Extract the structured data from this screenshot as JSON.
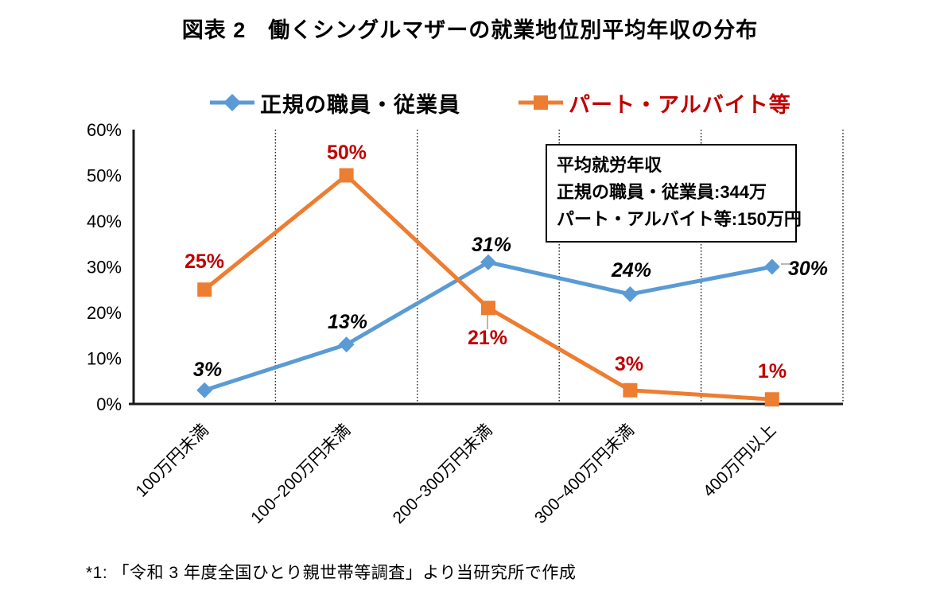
{
  "title": "図表 2　働くシングルマザーの就業地位別平均年収の分布",
  "legend": [
    {
      "label": "正規の職員・従業員",
      "color": "#5B9BD5",
      "text_color": "#000000",
      "marker": "diamond"
    },
    {
      "label": "パート・アルバイト等",
      "color": "#ED7D31",
      "text_color": "#C00000",
      "marker": "square"
    }
  ],
  "annotation_box": {
    "line1": "平均就労年収",
    "line2": "正規の職員・従業員:344万",
    "line3": "パート・アルバイト等:150万円"
  },
  "footnote": "*1: 「令和 3 年度全国ひとり親世帯等調査」より当研究所で作成",
  "chart_data": {
    "type": "line",
    "categories": [
      "100万円未満",
      "100~200万円未満",
      "200~300万円未満",
      "300~400万円未満",
      "400万円以上"
    ],
    "series": [
      {
        "name": "正規の職員・従業員",
        "values": [
          3,
          13,
          31,
          24,
          30
        ],
        "color": "#5B9BD5",
        "marker": "diamond",
        "label_color": "#000000",
        "label_italic": true,
        "labels": [
          "3%",
          "13%",
          "31%",
          "24%",
          "30%"
        ]
      },
      {
        "name": "パート・アルバイト等",
        "values": [
          25,
          50,
          21,
          3,
          1
        ],
        "color": "#ED7D31",
        "marker": "square",
        "label_color": "#C00000",
        "label_italic": false,
        "labels": [
          "25%",
          "50%",
          "21%",
          "3%",
          "1%"
        ]
      }
    ],
    "title": "図表 2　働くシングルマザーの就業地位別平均年収の分布",
    "xlabel": "",
    "ylabel": "",
    "ylim": [
      0,
      60
    ],
    "ytick_labels": [
      "0%",
      "10%",
      "20%",
      "30%",
      "40%",
      "50%",
      "60%"
    ],
    "grid": "vertical-dotted",
    "legend_position": "top"
  }
}
